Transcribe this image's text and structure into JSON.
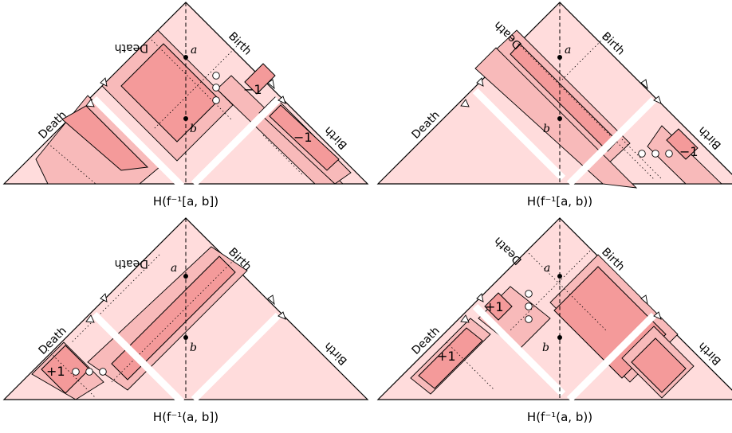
{
  "panels": [
    {
      "caption": "H(f⁻¹[a, b])",
      "labels": {
        "death_left": "Death",
        "death_top": "Death",
        "birth_top": "Birth",
        "birth_right": "Birth"
      },
      "points": {
        "a": "a",
        "b": "b"
      },
      "multiplicities": [
        "−1",
        "−1"
      ]
    },
    {
      "caption": "H(f⁻¹[a, b))",
      "labels": {
        "death_left": "Death",
        "death_top": "Death",
        "birth_top": "Birth",
        "birth_right": "Birth"
      },
      "points": {
        "a": "a",
        "b": "b"
      },
      "multiplicities": [
        "−1"
      ]
    },
    {
      "caption": "H(f⁻¹(a, b])",
      "labels": {
        "death_left": "Death",
        "death_top": "Death",
        "birth_top": "Birth",
        "birth_right": "Birth"
      },
      "points": {
        "a": "a",
        "b": "b"
      },
      "multiplicities": [
        "+1"
      ]
    },
    {
      "caption": "H(f⁻¹(a, b))",
      "labels": {
        "death_left": "Death",
        "death_top": "Death",
        "birth_top": "Birth",
        "birth_right": "Birth"
      },
      "points": {
        "a": "a",
        "b": "b"
      },
      "multiplicities": [
        "+1",
        "+1"
      ]
    }
  ]
}
